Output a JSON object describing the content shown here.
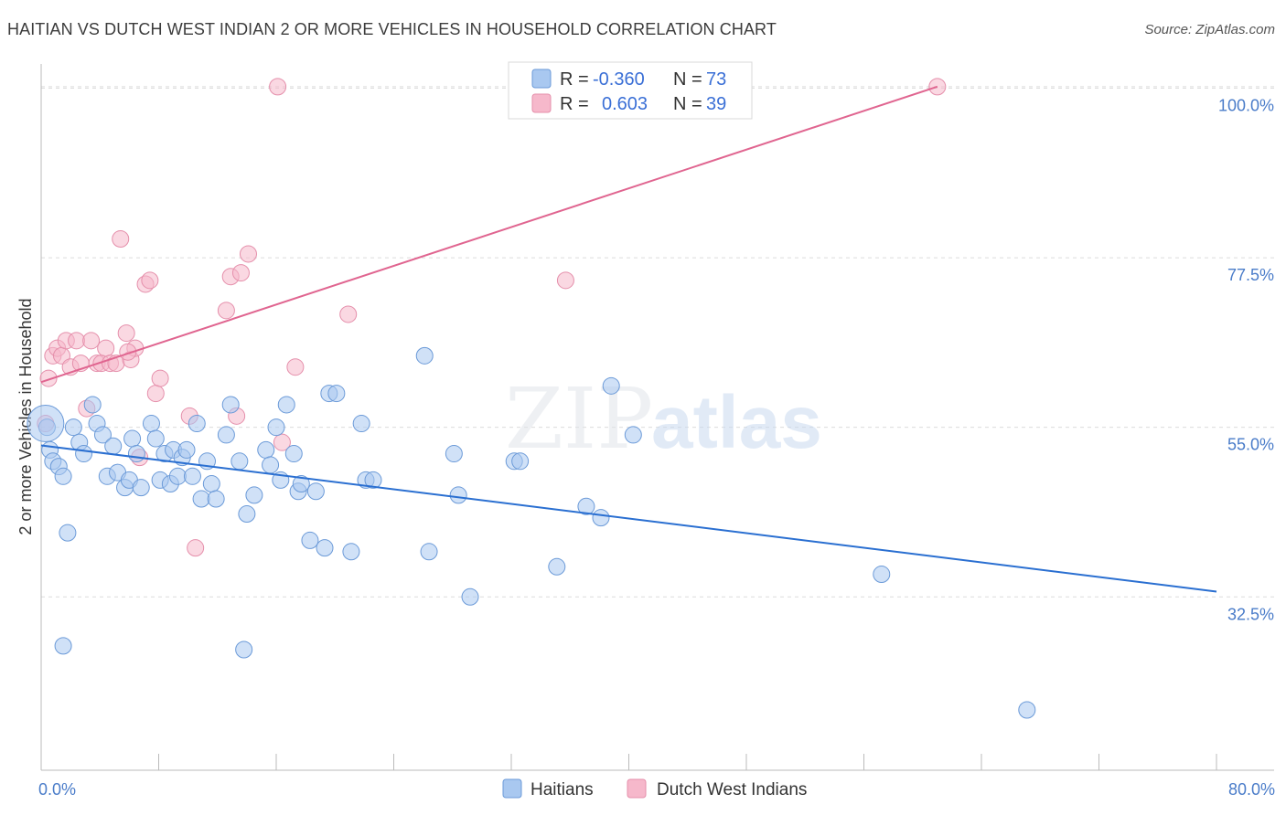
{
  "title": "HAITIAN VS DUTCH WEST INDIAN 2 OR MORE VEHICLES IN HOUSEHOLD CORRELATION CHART",
  "source": "Source: ZipAtlas.com",
  "watermark": {
    "zip": "ZIP",
    "atlas": "atlas"
  },
  "colors": {
    "haitians_fill": "#a9c8f0",
    "haitians_stroke": "#6b9ad8",
    "haitians_line": "#2a6fd1",
    "dutch_fill": "#f6b8cb",
    "dutch_stroke": "#e58fab",
    "dutch_line": "#e06590",
    "grid": "#dcdcdc",
    "tick_text": "#4a7cc9"
  },
  "legend": {
    "rows": [
      {
        "r_label": "R =",
        "r_value": "-0.360",
        "n_label": "N =",
        "n_value": "73"
      },
      {
        "r_label": "R =",
        "r_value": "0.603",
        "n_label": "N =",
        "n_value": "39"
      }
    ]
  },
  "chart_data": {
    "type": "scatter",
    "title": "HAITIAN VS DUTCH WEST INDIAN 2 OR MORE VEHICLES IN HOUSEHOLD CORRELATION CHART",
    "xlabel": "",
    "ylabel": "2 or more Vehicles in Household",
    "xlim": [
      0,
      80
    ],
    "ylim": [
      9.5,
      102
    ],
    "x_tick_labels": [
      "0.0%",
      "80.0%"
    ],
    "y_ticks": [
      32.5,
      55.0,
      77.5,
      100.0
    ],
    "y_tick_labels": [
      "32.5%",
      "55.0%",
      "77.5%",
      "100.0%"
    ],
    "grid": true,
    "legend_placement": "top-center",
    "series": [
      {
        "name": "Haitians",
        "r": -0.36,
        "n": 73,
        "trend": {
          "x0": 0.0,
          "y0": 52.6,
          "x1": 80.0,
          "y1": 33.2
        },
        "points": [
          [
            0.4,
            55.0
          ],
          [
            0.6,
            52.0
          ],
          [
            0.8,
            50.5
          ],
          [
            1.2,
            49.8
          ],
          [
            1.5,
            48.5
          ],
          [
            2.2,
            55.0
          ],
          [
            2.6,
            53.0
          ],
          [
            2.9,
            51.5
          ],
          [
            3.5,
            58.0
          ],
          [
            3.8,
            55.5
          ],
          [
            4.2,
            54.0
          ],
          [
            4.5,
            48.5
          ],
          [
            4.9,
            52.5
          ],
          [
            5.2,
            49.0
          ],
          [
            5.7,
            47.0
          ],
          [
            6.0,
            48.0
          ],
          [
            6.2,
            53.5
          ],
          [
            6.5,
            51.5
          ],
          [
            6.8,
            47.0
          ],
          [
            7.5,
            55.5
          ],
          [
            7.8,
            53.5
          ],
          [
            8.1,
            48.0
          ],
          [
            8.4,
            51.5
          ],
          [
            8.8,
            47.5
          ],
          [
            9.0,
            52.0
          ],
          [
            9.3,
            48.5
          ],
          [
            9.6,
            51.0
          ],
          [
            9.9,
            52.0
          ],
          [
            10.3,
            48.5
          ],
          [
            10.6,
            55.5
          ],
          [
            10.9,
            45.5
          ],
          [
            11.3,
            50.5
          ],
          [
            11.6,
            47.5
          ],
          [
            11.9,
            45.5
          ],
          [
            12.6,
            54.0
          ],
          [
            12.9,
            58.0
          ],
          [
            13.5,
            50.5
          ],
          [
            14.0,
            43.5
          ],
          [
            14.5,
            46.0
          ],
          [
            15.3,
            52.0
          ],
          [
            15.6,
            50.0
          ],
          [
            16.0,
            55.0
          ],
          [
            16.3,
            48.0
          ],
          [
            16.7,
            58.0
          ],
          [
            17.2,
            51.5
          ],
          [
            17.5,
            46.5
          ],
          [
            17.7,
            47.5
          ],
          [
            18.3,
            40.0
          ],
          [
            18.7,
            46.5
          ],
          [
            19.3,
            39.0
          ],
          [
            19.6,
            59.5
          ],
          [
            20.1,
            59.5
          ],
          [
            21.1,
            38.5
          ],
          [
            21.8,
            55.5
          ],
          [
            22.1,
            48.0
          ],
          [
            22.6,
            48.0
          ],
          [
            26.1,
            64.5
          ],
          [
            26.4,
            38.5
          ],
          [
            28.1,
            51.5
          ],
          [
            28.4,
            46.0
          ],
          [
            29.2,
            32.5
          ],
          [
            32.2,
            50.5
          ],
          [
            32.6,
            50.5
          ],
          [
            35.1,
            36.5
          ],
          [
            37.1,
            44.5
          ],
          [
            38.1,
            43.0
          ],
          [
            38.8,
            60.5
          ],
          [
            40.3,
            54.0
          ],
          [
            57.2,
            35.5
          ],
          [
            67.1,
            17.5
          ],
          [
            1.5,
            26.0
          ],
          [
            13.8,
            25.5
          ],
          [
            1.8,
            41.0
          ]
        ]
      },
      {
        "name": "Dutch West Indians",
        "r": 0.603,
        "n": 39,
        "trend": {
          "x0": 0.0,
          "y0": 61.0,
          "x1": 61.0,
          "y1": 100.2
        },
        "points": [
          [
            0.5,
            61.5
          ],
          [
            0.8,
            64.5
          ],
          [
            1.1,
            65.5
          ],
          [
            1.4,
            64.5
          ],
          [
            1.7,
            66.5
          ],
          [
            2.0,
            63.0
          ],
          [
            2.4,
            66.5
          ],
          [
            2.7,
            63.5
          ],
          [
            3.1,
            57.5
          ],
          [
            3.4,
            66.5
          ],
          [
            3.8,
            63.5
          ],
          [
            4.1,
            63.5
          ],
          [
            4.4,
            65.5
          ],
          [
            4.7,
            63.5
          ],
          [
            5.1,
            63.5
          ],
          [
            5.4,
            80.0
          ],
          [
            5.8,
            67.5
          ],
          [
            6.1,
            64.0
          ],
          [
            6.4,
            65.5
          ],
          [
            6.7,
            51.0
          ],
          [
            7.1,
            74.0
          ],
          [
            7.4,
            74.5
          ],
          [
            7.8,
            59.5
          ],
          [
            8.1,
            61.5
          ],
          [
            10.1,
            56.5
          ],
          [
            10.5,
            39.0
          ],
          [
            12.6,
            70.5
          ],
          [
            12.9,
            75.0
          ],
          [
            13.3,
            56.5
          ],
          [
            13.6,
            75.5
          ],
          [
            14.1,
            78.0
          ],
          [
            16.1,
            100.2
          ],
          [
            16.4,
            53.0
          ],
          [
            17.3,
            63.0
          ],
          [
            20.9,
            70.0
          ],
          [
            35.7,
            74.5
          ],
          [
            61.0,
            100.2
          ],
          [
            0.3,
            55.5
          ],
          [
            5.9,
            65.0
          ]
        ]
      }
    ]
  }
}
